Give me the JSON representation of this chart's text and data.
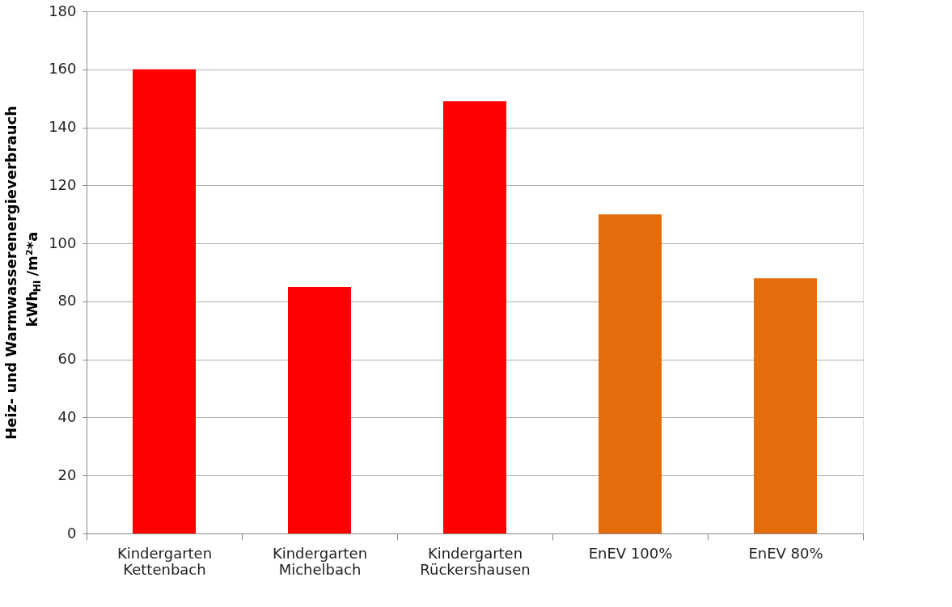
{
  "chart_data": {
    "type": "bar",
    "ylabel": "Heiz- und Warmwasserenergieverbrauch\nkWh$_{Hi}$/m²*a",
    "categories": [
      "Kindergarten\nKettenbach",
      "Kindergarten\nMichelbach",
      "Kindergarten\nRückershausen",
      "EnEV 100%",
      "EnEV 80%"
    ],
    "values": [
      160,
      85,
      149,
      110,
      88
    ],
    "colors": [
      "#ff0000",
      "#ff0000",
      "#ff0000",
      "#e46c0a",
      "#e46c0a"
    ],
    "ylim": [
      0,
      180
    ],
    "yticks": [
      0,
      20,
      40,
      60,
      80,
      100,
      120,
      140,
      160,
      180
    ],
    "grid": "y"
  }
}
